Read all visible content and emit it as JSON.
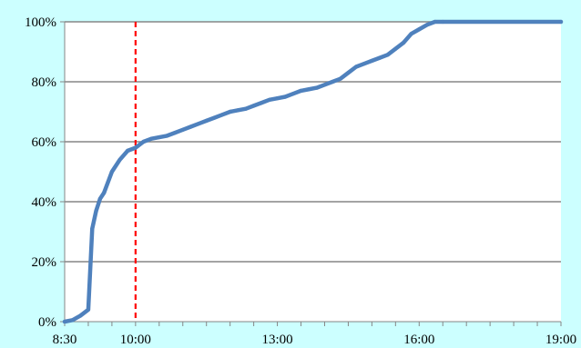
{
  "colors": {
    "background": "#ccffff",
    "plot_background": "#ffffff",
    "series_line": "#4f81bd",
    "marker_line": "#ff0000",
    "grid": "#868686",
    "axis": "#868686"
  },
  "chart_data": {
    "type": "line",
    "title": "",
    "xlabel": "",
    "ylabel": "",
    "xlim": [
      "8:30",
      "19:00"
    ],
    "ylim": [
      0,
      100
    ],
    "x_ticks": [
      "8:30",
      "10:00",
      "13:00",
      "16:00",
      "19:00"
    ],
    "y_ticks": [
      "0%",
      "20%",
      "40%",
      "60%",
      "80%",
      "100%"
    ],
    "grid": "horizontal",
    "legend": "none",
    "vertical_marker": {
      "x": "10:00",
      "style": "dashed"
    },
    "series": [
      {
        "x": [
          "8:30",
          "8:40",
          "8:50",
          "9:00",
          "9:05",
          "9:10",
          "9:15",
          "9:20",
          "9:30",
          "9:40",
          "9:50",
          "10:00",
          "10:10",
          "10:20",
          "10:30",
          "10:40",
          "10:50",
          "11:00",
          "11:10",
          "11:20",
          "11:30",
          "11:40",
          "11:50",
          "12:00",
          "12:10",
          "12:20",
          "12:30",
          "12:40",
          "12:50",
          "13:00",
          "13:10",
          "13:20",
          "13:30",
          "13:40",
          "13:50",
          "14:00",
          "14:10",
          "14:20",
          "14:30",
          "14:40",
          "14:50",
          "15:00",
          "15:10",
          "15:20",
          "15:30",
          "15:40",
          "15:50",
          "16:00",
          "16:10",
          "16:20",
          "16:30",
          "19:00"
        ],
        "values": [
          0,
          0.5,
          2,
          4,
          31,
          37,
          41,
          43,
          50,
          54,
          57,
          58,
          60,
          61,
          61.5,
          62,
          63,
          64,
          65,
          66,
          67,
          68,
          69,
          70,
          70.5,
          71,
          72,
          73,
          74,
          74.5,
          75,
          76,
          77,
          77.5,
          78,
          79,
          80,
          81,
          83,
          85,
          86,
          87,
          88,
          89,
          91,
          93,
          96,
          97.5,
          99,
          100,
          100,
          100
        ]
      }
    ]
  }
}
